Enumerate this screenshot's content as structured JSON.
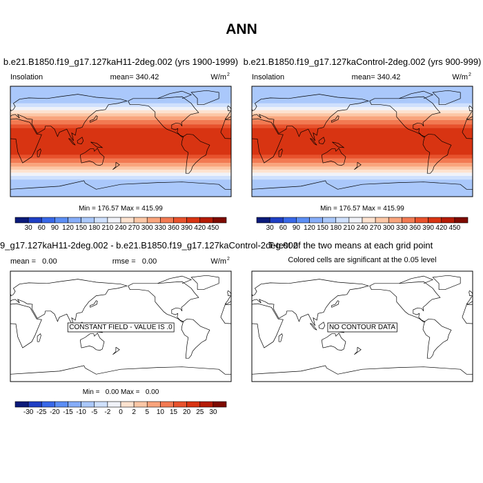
{
  "title": "ANN",
  "panels": [
    {
      "title": "b.e21.B1850.f19_g17.127kaH11-2deg.002 (yrs 1900-1999)",
      "left_label": "Insolation",
      "center_label": "mean= 340.42",
      "units": "W/m",
      "units_exponent": "2",
      "stats": "Min = 176.57 Max = 415.99",
      "colorbar": {
        "labels": [
          30,
          60,
          90,
          120,
          150,
          180,
          210,
          240,
          270,
          300,
          330,
          360,
          390,
          420,
          450
        ],
        "colors": [
          "#0b1a7a",
          "#1f3fc4",
          "#3868e8",
          "#5c8ef5",
          "#86adf9",
          "#aac8fb",
          "#cfe0fd",
          "#f0f2f8",
          "#fde2cf",
          "#fcc7a6",
          "#f9a47c",
          "#f27a52",
          "#e8522c",
          "#d83412",
          "#b51b05",
          "#7e0a00"
        ]
      }
    },
    {
      "title": "b.e21.B1850.f19_g17.127kaControl-2deg.002 (yrs 900-999)",
      "left_label": "Insolation",
      "center_label": "mean= 340.42",
      "units": "W/m",
      "units_exponent": "2",
      "stats": "Min = 176.57 Max = 415.99",
      "colorbar": {
        "labels": [
          30,
          60,
          90,
          120,
          150,
          180,
          210,
          240,
          270,
          300,
          330,
          360,
          390,
          420,
          450
        ],
        "colors": [
          "#0b1a7a",
          "#1f3fc4",
          "#3868e8",
          "#5c8ef5",
          "#86adf9",
          "#aac8fb",
          "#cfe0fd",
          "#f0f2f8",
          "#fde2cf",
          "#fcc7a6",
          "#f9a47c",
          "#f27a52",
          "#e8522c",
          "#d83412",
          "#b51b05",
          "#7e0a00"
        ]
      }
    },
    {
      "title": "9_g17.127kaH11-2deg.002 - b.e21.B1850.f19_g17.127kaControl-2deg.002",
      "left_label": "mean =   0.00",
      "center_label": "rmse =   0.00",
      "units": "W/m",
      "units_exponent": "2",
      "map_note": "CONSTANT FIELD - VALUE IS .0",
      "stats": "Min =   0.00 Max =   0.00",
      "colorbar": {
        "labels": [
          -30,
          -25,
          -20,
          -15,
          -10,
          -5,
          -2,
          0,
          2,
          5,
          10,
          15,
          20,
          25,
          30
        ],
        "colors": [
          "#0b1a7a",
          "#1f3fc4",
          "#3868e8",
          "#5c8ef5",
          "#86adf9",
          "#aac8fb",
          "#cfe0fd",
          "#f0f2f8",
          "#fde2cf",
          "#fcc7a6",
          "#f9a47c",
          "#f27a52",
          "#e8522c",
          "#d83412",
          "#b51b05",
          "#7e0a00"
        ]
      }
    },
    {
      "title": "T-test of the two means at each grid point",
      "subtitle": "Colored cells are significant at the 0.05 level",
      "map_note": "NO CONTOUR DATA"
    }
  ]
}
